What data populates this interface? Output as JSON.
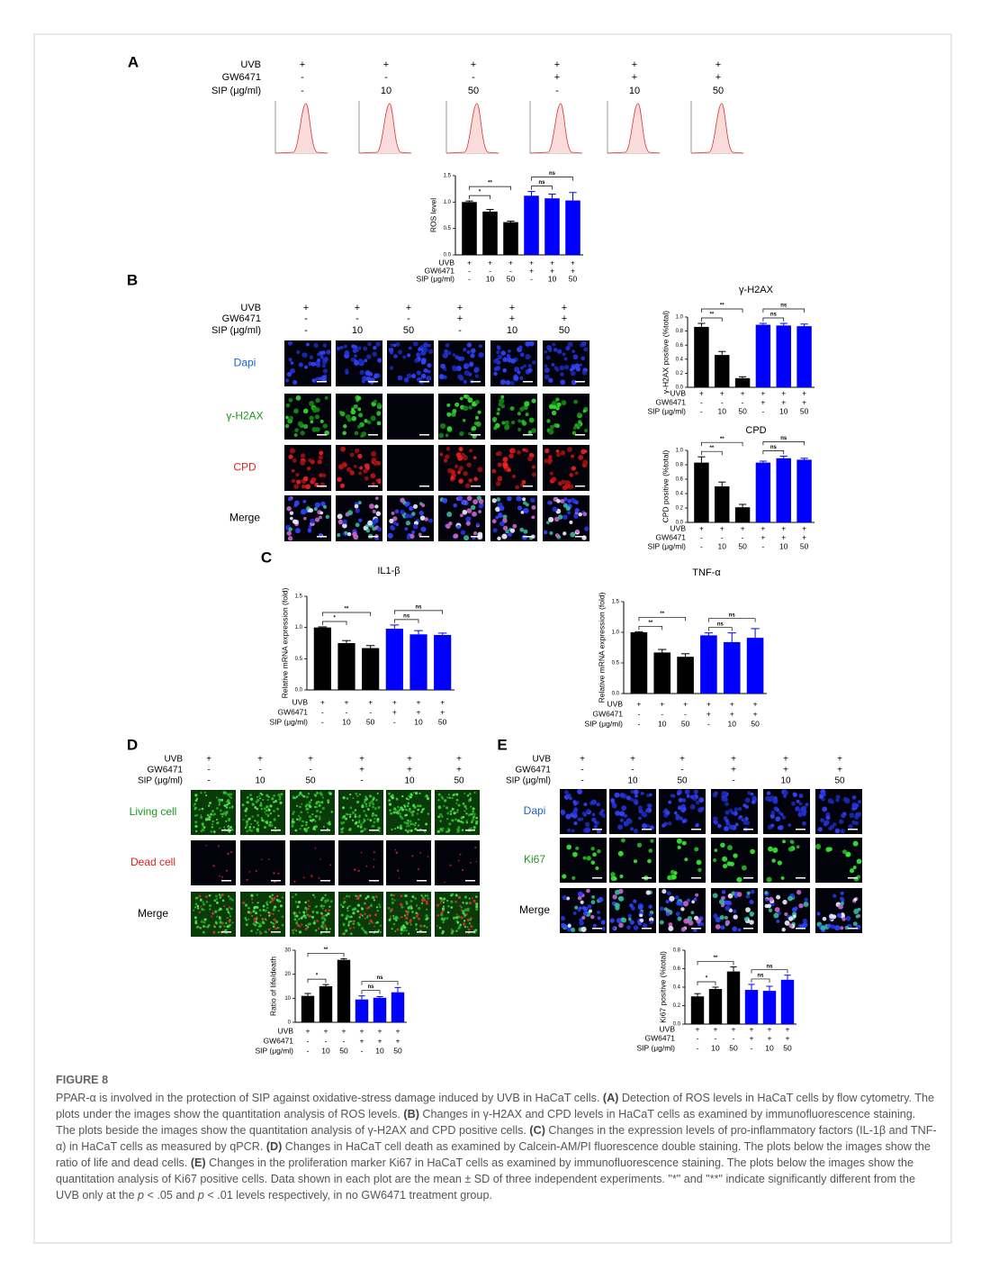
{
  "panels": {
    "A": {
      "label": "A",
      "conditions": [
        {
          "name": "UVB",
          "values": [
            "+",
            "+",
            "+",
            "+",
            "+",
            "+"
          ]
        },
        {
          "name": "GW6471",
          "values": [
            "-",
            "-",
            "-",
            "+",
            "+",
            "+"
          ]
        },
        {
          "name": "SIP (μg/ml)",
          "values": [
            "-",
            "10",
            "50",
            "-",
            "10",
            "50"
          ]
        }
      ]
    },
    "B": {
      "label": "B",
      "conditions": [
        {
          "name": "UVB",
          "values": [
            "+",
            "+",
            "+",
            "+",
            "+",
            "+"
          ]
        },
        {
          "name": "GW6471",
          "values": [
            "-",
            "-",
            "-",
            "+",
            "+",
            "+"
          ]
        },
        {
          "name": "SIP (μg/ml)",
          "values": [
            "-",
            "10",
            "50",
            "-",
            "10",
            "50"
          ]
        }
      ],
      "rows": [
        "Dapi",
        "γ-H2AX",
        "CPD",
        "Merge"
      ]
    },
    "C": {
      "label": "C"
    },
    "D": {
      "label": "D",
      "conditions": [
        {
          "name": "UVB",
          "values": [
            "+",
            "+",
            "+",
            "+",
            "+",
            "+"
          ]
        },
        {
          "name": "GW6471",
          "values": [
            "-",
            "-",
            "-",
            "+",
            "+",
            "+"
          ]
        },
        {
          "name": "SIP (μg/ml)",
          "values": [
            "-",
            "10",
            "50",
            "-",
            "10",
            "50"
          ]
        }
      ],
      "rows": [
        "Living cell",
        "Dead cell",
        "Merge"
      ]
    },
    "E": {
      "label": "E",
      "conditions": [
        {
          "name": "UVB",
          "values": [
            "+",
            "+",
            "+",
            "+",
            "+",
            "+"
          ]
        },
        {
          "name": "GW6471",
          "values": [
            "-",
            "-",
            "-",
            "+",
            "+",
            "+"
          ]
        },
        {
          "name": "SIP (μg/ml)",
          "values": [
            "-",
            "10",
            "50",
            "-",
            "10",
            "50"
          ]
        }
      ],
      "rows": [
        "Dapi",
        "Ki67",
        "Merge"
      ]
    }
  },
  "chart_data": [
    {
      "type": "bar",
      "ylabel": "ROS level",
      "ylim": [
        0,
        1.5
      ],
      "yticks": [
        {
          "value": 0,
          "label": "0.0"
        },
        0.5,
        {
          "value": 1,
          "label": "1.0"
        },
        1.5
      ],
      "values": [
        1.0,
        0.82,
        0.62,
        1.12,
        1.07,
        1.03
      ],
      "errors": [
        0.02,
        0.04,
        0.02,
        0.08,
        0.08,
        0.15
      ],
      "colors": [
        "#000000",
        "#000000",
        "#000000",
        "#0000ff",
        "#0000ff",
        "#0000ff"
      ],
      "annotations": [
        "*",
        "**",
        "ns",
        "ns"
      ],
      "conditions": [
        {
          "name": "UVB",
          "values": [
            "+",
            "+",
            "+",
            "+",
            "+",
            "+"
          ]
        },
        {
          "name": "GW6471",
          "values": [
            "-",
            "-",
            "-",
            "+",
            "+",
            "+"
          ]
        },
        {
          "name": "SIP (μg/ml)",
          "values": [
            "-",
            "10",
            "50",
            "-",
            "10",
            "50"
          ]
        }
      ]
    },
    {
      "type": "bar",
      "title": "γ-H2AX",
      "ylabel": "γ-H2AX positive (%total)",
      "ylim": [
        0,
        1.0
      ],
      "yticks": [
        {
          "value": 0,
          "label": "0.0"
        },
        0.2,
        0.4,
        0.6,
        0.8,
        {
          "value": 1,
          "label": "1.0"
        }
      ],
      "values": [
        0.86,
        0.46,
        0.13,
        0.89,
        0.88,
        0.87
      ],
      "errors": [
        0.05,
        0.05,
        0.02,
        0.02,
        0.03,
        0.03
      ],
      "colors": [
        "#000000",
        "#000000",
        "#000000",
        "#0000ff",
        "#0000ff",
        "#0000ff"
      ],
      "annotations": [
        "**",
        "**",
        "ns",
        "ns"
      ],
      "conditions": [
        {
          "name": "UVB",
          "values": [
            "+",
            "+",
            "+",
            "+",
            "+",
            "+"
          ]
        },
        {
          "name": "GW6471",
          "values": [
            "-",
            "-",
            "-",
            "+",
            "+",
            "+"
          ]
        },
        {
          "name": "SIP (μg/ml)",
          "values": [
            "-",
            "10",
            "50",
            "-",
            "10",
            "50"
          ]
        }
      ]
    },
    {
      "type": "bar",
      "title": "CPD",
      "ylabel": "CPD positive (%total)",
      "ylim": [
        0,
        1.0
      ],
      "yticks": [
        {
          "value": 0,
          "label": "0.0"
        },
        0.2,
        0.4,
        0.6,
        0.8,
        {
          "value": 1,
          "label": "1.0"
        }
      ],
      "values": [
        0.83,
        0.5,
        0.21,
        0.83,
        0.89,
        0.87
      ],
      "errors": [
        0.08,
        0.06,
        0.04,
        0.02,
        0.03,
        0.02
      ],
      "colors": [
        "#000000",
        "#000000",
        "#000000",
        "#0000ff",
        "#0000ff",
        "#0000ff"
      ],
      "annotations": [
        "**",
        "**",
        "ns",
        "ns"
      ],
      "conditions": [
        {
          "name": "UVB",
          "values": [
            "+",
            "+",
            "+",
            "+",
            "+",
            "+"
          ]
        },
        {
          "name": "GW6471",
          "values": [
            "-",
            "-",
            "-",
            "+",
            "+",
            "+"
          ]
        },
        {
          "name": "SIP (μg/ml)",
          "values": [
            "-",
            "10",
            "50",
            "-",
            "10",
            "50"
          ]
        }
      ]
    },
    {
      "type": "bar",
      "title": "IL1-β",
      "ylabel": "Relative mRNA expression (fold)",
      "ylim": [
        0,
        1.5
      ],
      "yticks": [
        {
          "value": 0,
          "label": "0.0"
        },
        0.5,
        {
          "value": 1,
          "label": "1.0"
        },
        1.5
      ],
      "values": [
        1.0,
        0.75,
        0.67,
        0.98,
        0.89,
        0.88
      ],
      "errors": [
        0.01,
        0.04,
        0.04,
        0.06,
        0.06,
        0.03
      ],
      "colors": [
        "#000000",
        "#000000",
        "#000000",
        "#0000ff",
        "#0000ff",
        "#0000ff"
      ],
      "annotations": [
        "*",
        "**",
        "ns",
        "ns"
      ],
      "conditions": [
        {
          "name": "UVB",
          "values": [
            "+",
            "+",
            "+",
            "+",
            "+",
            "+"
          ]
        },
        {
          "name": "GW6471",
          "values": [
            "-",
            "-",
            "-",
            "+",
            "+",
            "+"
          ]
        },
        {
          "name": "SIP (μg/ml)",
          "values": [
            "-",
            "10",
            "50",
            "-",
            "10",
            "50"
          ]
        }
      ]
    },
    {
      "type": "bar",
      "title": "TNF-α",
      "ylabel": "Relative mRNA expression (fold)",
      "ylim": [
        0,
        1.5
      ],
      "yticks": [
        {
          "value": 0,
          "label": "0.0"
        },
        0.5,
        {
          "value": 1,
          "label": "1.0"
        },
        1.5
      ],
      "values": [
        1.0,
        0.67,
        0.6,
        0.95,
        0.84,
        0.91
      ],
      "errors": [
        0.01,
        0.05,
        0.05,
        0.04,
        0.15,
        0.15
      ],
      "colors": [
        "#000000",
        "#000000",
        "#000000",
        "#0000ff",
        "#0000ff",
        "#0000ff"
      ],
      "annotations": [
        "**",
        "**",
        "ns",
        "ns"
      ],
      "conditions": [
        {
          "name": "UVB",
          "values": [
            "+",
            "+",
            "+",
            "+",
            "+",
            "+"
          ]
        },
        {
          "name": "GW6471",
          "values": [
            "-",
            "-",
            "-",
            "+",
            "+",
            "+"
          ]
        },
        {
          "name": "SIP (μg/ml)",
          "values": [
            "-",
            "10",
            "50",
            "-",
            "10",
            "50"
          ]
        }
      ]
    },
    {
      "type": "bar",
      "ylabel": "Ratio of life/death",
      "ylim": [
        0,
        30
      ],
      "yticks": [
        0,
        10,
        20,
        30
      ],
      "values": [
        11,
        15,
        26,
        9.5,
        10.2,
        12.5
      ],
      "errors": [
        1,
        0.7,
        0.5,
        1.5,
        0.5,
        2
      ],
      "colors": [
        "#000000",
        "#000000",
        "#000000",
        "#0000ff",
        "#0000ff",
        "#0000ff"
      ],
      "annotations": [
        "*",
        "**",
        "ns",
        "ns"
      ],
      "conditions": [
        {
          "name": "UVB",
          "values": [
            "+",
            "+",
            "+",
            "+",
            "+",
            "+"
          ]
        },
        {
          "name": "GW6471",
          "values": [
            "-",
            "-",
            "-",
            "+",
            "+",
            "+"
          ]
        },
        {
          "name": "SIP (μg/ml)",
          "values": [
            "-",
            "10",
            "50",
            "-",
            "10",
            "50"
          ]
        }
      ]
    },
    {
      "type": "bar",
      "ylabel": "Ki67 positive (%total)",
      "ylim": [
        0,
        0.8
      ],
      "yticks": [
        {
          "value": 0,
          "label": "0.0"
        },
        0.2,
        0.4,
        0.6,
        0.8
      ],
      "values": [
        0.3,
        0.38,
        0.57,
        0.37,
        0.36,
        0.48
      ],
      "errors": [
        0.03,
        0.02,
        0.05,
        0.06,
        0.05,
        0.05
      ],
      "colors": [
        "#000000",
        "#000000",
        "#000000",
        "#0000ff",
        "#0000ff",
        "#0000ff"
      ],
      "annotations": [
        "*",
        "**",
        "ns",
        "ns"
      ],
      "conditions": [
        {
          "name": "UVB",
          "values": [
            "+",
            "+",
            "+",
            "+",
            "+",
            "+"
          ]
        },
        {
          "name": "GW6471",
          "values": [
            "-",
            "-",
            "-",
            "+",
            "+",
            "+"
          ]
        },
        {
          "name": "SIP (μg/ml)",
          "values": [
            "-",
            "10",
            "50",
            "-",
            "10",
            "50"
          ]
        }
      ]
    }
  ],
  "caption": {
    "title": "FIGURE 8",
    "segments": [
      "PPAR-α is involved in the protection of SIP against oxidative-stress damage induced by UVB in HaCaT cells. ",
      "(A)",
      " Detection of ROS levels in HaCaT cells by flow cytometry. The plots under the images show the quantitation analysis of ROS levels. ",
      "(B)",
      " Changes in γ-H2AX and CPD levels in HaCaT cells as examined by immunofluorescence staining. The plots beside the images show the quantitation analysis of γ-H2AX and CPD positive cells. ",
      "(C)",
      " Changes in the expression levels of pro-inflammatory factors (IL-1β and TNF-α) in HaCaT cells as measured by qPCR. ",
      "(D)",
      " Changes in HaCaT cell death as examined by Calcein-AM/PI fluorescence double staining. The plots below the images show the ratio of life and dead cells. ",
      "(E)",
      " Changes in the proliferation marker Ki67 in HaCaT cells as examined by immunofluorescence staining. The plots below the images show the quantitation analysis of Ki67 positive cells. Data shown in each plot are the mean ± SD of three independent experiments. \"*\" and \"**\" indicate significantly different from the UVB only at the ",
      "p",
      " < .05 and ",
      "p",
      " < .01 levels respectively, in no GW6471 treatment group."
    ]
  }
}
